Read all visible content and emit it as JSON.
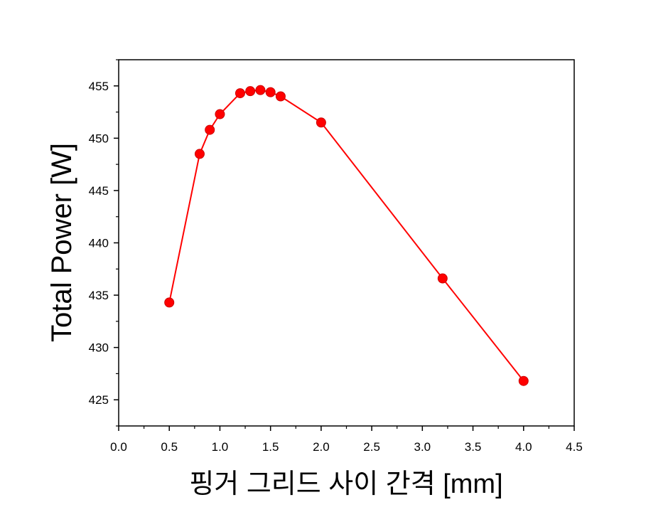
{
  "chart_data": {
    "type": "line",
    "title": "",
    "xlabel": "핑거 그리드 사이 간격 [mm]",
    "ylabel": "Total Power [W]",
    "xlim": [
      0.0,
      4.5
    ],
    "ylim": [
      422.5,
      457.5
    ],
    "xticks": [
      0.0,
      0.5,
      1.0,
      1.5,
      2.0,
      2.5,
      3.0,
      3.5,
      4.0,
      4.5
    ],
    "xtick_labels": [
      "0.0",
      "0.5",
      "1.0",
      "1.5",
      "2.0",
      "2.5",
      "3.0",
      "3.5",
      "4.0",
      "4.5"
    ],
    "yticks": [
      425,
      430,
      435,
      440,
      445,
      450,
      455
    ],
    "ytick_labels": [
      "425",
      "430",
      "435",
      "440",
      "445",
      "450",
      "455"
    ],
    "grid": false,
    "legend": "none",
    "series": [
      {
        "color": "#ff0000",
        "marker": "circle",
        "x": [
          0.5,
          0.8,
          0.9,
          1.0,
          1.2,
          1.3,
          1.4,
          1.5,
          1.6,
          2.0,
          3.2,
          4.0
        ],
        "y": [
          434.3,
          448.5,
          450.8,
          452.3,
          454.3,
          454.5,
          454.6,
          454.4,
          454.0,
          451.5,
          436.6,
          426.8
        ]
      }
    ]
  }
}
